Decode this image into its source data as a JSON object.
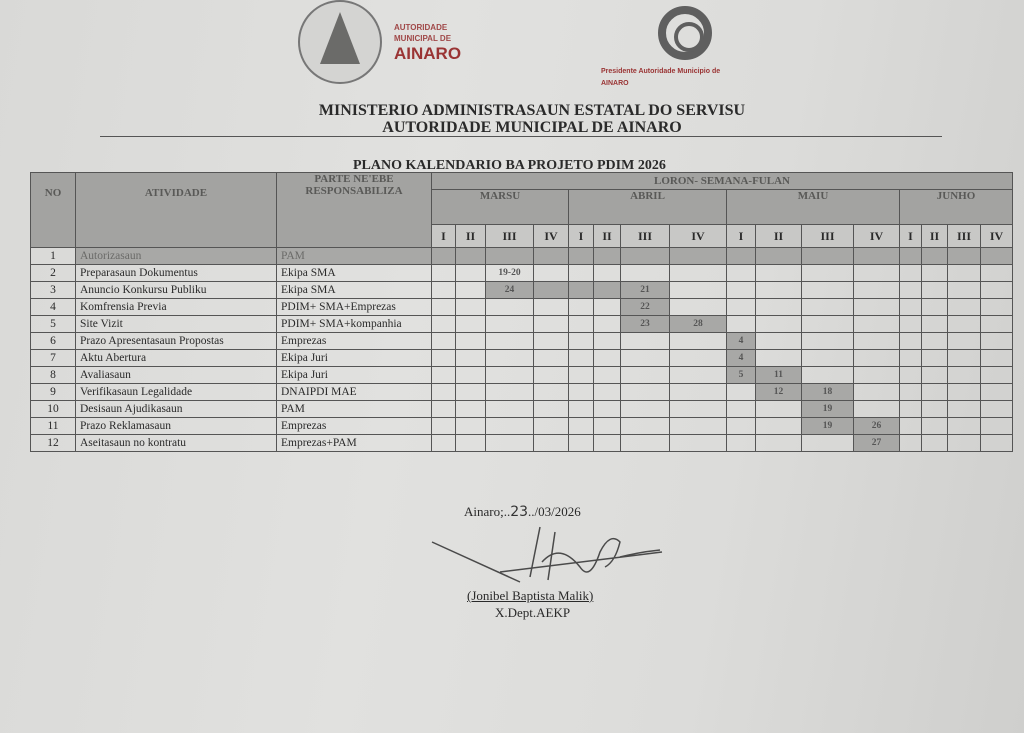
{
  "header": {
    "org_line1": "AUTORIDADE",
    "org_line2": "MUNICIPAL DE",
    "org_line3": "AINARO",
    "president_line1": "Presidente Autoridade Municipio de",
    "president_line2": "AINARO",
    "ministry": "MINISTERIO ADMINISTRASAUN ESTATAL DO SERVISU",
    "authority": "AUTORIDADE MUNICIPAL DE AINARO"
  },
  "plan_title": "PLANO KALENDARIO BA PROJETO PDIM 2026",
  "table": {
    "col_no": "NO",
    "col_activity": "ATIVIDADE",
    "col_responsible": "PARTE NE'EBE RESPONSABILIZA",
    "calendar_header": "LORON- SEMANA-FULAN",
    "months": [
      "MARSU",
      "ABRIL",
      "MAIU",
      "JUNHO"
    ],
    "weeks": [
      "I",
      "II",
      "III",
      "IV"
    ],
    "rows": [
      {
        "no": "1",
        "activity": "Autorizasaun",
        "responsible": "PAM",
        "all_shaded": true,
        "cells": {}
      },
      {
        "no": "2",
        "activity": "Preparasaun Dokumentus",
        "responsible": "Ekipa SMA",
        "cells": {
          "2": "19-20"
        },
        "shaded": []
      },
      {
        "no": "3",
        "activity": "Anuncio Konkursu Publiku",
        "responsible": "Ekipa SMA",
        "cells": {
          "2": "24",
          "6": "21"
        },
        "shaded": [
          2,
          3,
          4,
          5,
          6
        ]
      },
      {
        "no": "4",
        "activity": "Komfrensia Previa",
        "responsible": "PDIM+ SMA+Emprezas",
        "cells": {
          "6": "22"
        },
        "shaded": [
          6
        ]
      },
      {
        "no": "5",
        "activity": "Site Vizit",
        "responsible": "PDIM+ SMA+kompanhia",
        "cells": {
          "6": "23",
          "7": "28"
        },
        "shaded": [
          6,
          7
        ]
      },
      {
        "no": "6",
        "activity": "Prazo Apresentasaun Propostas",
        "responsible": "Emprezas",
        "cells": {
          "8": "4"
        },
        "shaded": [
          8
        ]
      },
      {
        "no": "7",
        "activity": "Aktu Abertura",
        "responsible": "Ekipa Juri",
        "cells": {
          "8": "4"
        },
        "shaded": [
          8
        ]
      },
      {
        "no": "8",
        "activity": "Avaliasaun",
        "responsible": "Ekipa Juri",
        "cells": {
          "8": "5",
          "9": "11"
        },
        "shaded": [
          8,
          9
        ]
      },
      {
        "no": "9",
        "activity": "Verifikasaun Legalidade",
        "responsible": "DNAIPDI MAE",
        "cells": {
          "9": "12",
          "10": "18"
        },
        "shaded": [
          9,
          10
        ]
      },
      {
        "no": "10",
        "activity": "Desisaun Ajudikasaun",
        "responsible": "PAM",
        "cells": {
          "10": "19"
        },
        "shaded": [
          10
        ]
      },
      {
        "no": "11",
        "activity": "Prazo Reklamasaun",
        "responsible": "Emprezas",
        "cells": {
          "10": "19",
          "11": "26"
        },
        "shaded": [
          10,
          11
        ]
      },
      {
        "no": "12",
        "activity": "Aseitasaun no kontratu",
        "responsible": "Emprezas+PAM",
        "cells": {
          "11": "27"
        },
        "shaded": [
          11
        ]
      }
    ]
  },
  "footer": {
    "place": "Ainaro;..",
    "day_handwritten": "23",
    "date_rest": "../03/2026",
    "signatory": "(Jonibel Baptista Malik)",
    "department": "X.Dept.AEKP"
  }
}
